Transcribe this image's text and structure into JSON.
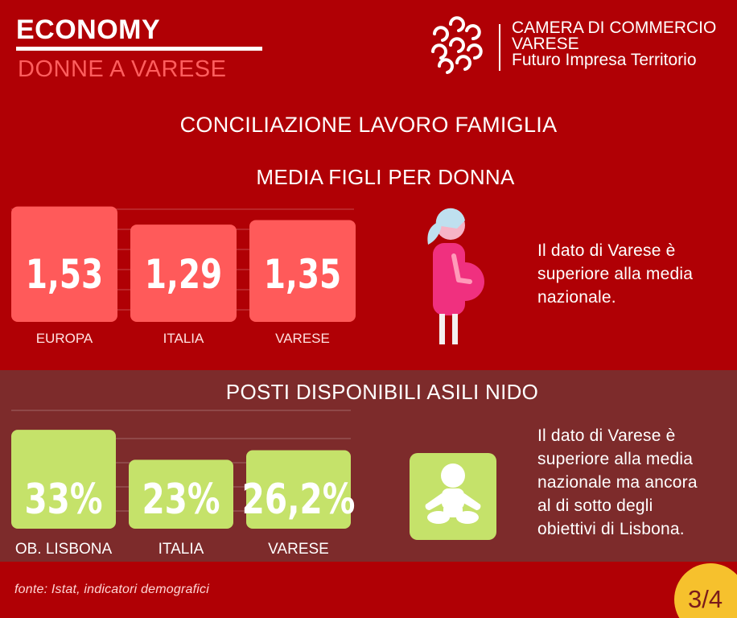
{
  "header": {
    "title": "ECONOMY",
    "subtitle": "DONNE A VARESE",
    "logo_lines": [
      "CAMERA DI COMMERCIO",
      "VARESE",
      "Futuro Impresa Territorio"
    ]
  },
  "main_title": "CONCILIAZIONE LAVORO FAMIGLIA",
  "colors": {
    "background": "#b00005",
    "section2_background": "#7d2b2b",
    "bar1": "#ff5a5a",
    "bar2": "#c5e26a",
    "icon_pink": "#f0307f",
    "badge": "#f6c12d"
  },
  "chart_data": [
    {
      "type": "bar",
      "title": "MEDIA FIGLI PER DONNA",
      "categories": [
        "EUROPA",
        "ITALIA",
        "VARESE"
      ],
      "values": [
        1.53,
        1.29,
        1.35
      ],
      "value_labels": [
        "1,53",
        "1,29",
        "1,35"
      ],
      "ylim": [
        0,
        1.6
      ],
      "grid": true
    },
    {
      "type": "bar",
      "title": "POSTI DISPONIBILI ASILI NIDO",
      "categories": [
        "OB. LISBONA",
        "ITALIA",
        "VARESE"
      ],
      "values": [
        33,
        23,
        26.2
      ],
      "value_labels": [
        "33%",
        "23%",
        "26,2%"
      ],
      "ylim": [
        0,
        36
      ],
      "grid": true
    }
  ],
  "notes": {
    "note1": [
      "Il dato di Varese è",
      "superiore alla media",
      "nazionale."
    ],
    "note2": [
      "Il dato di Varese è",
      "superiore alla media",
      "nazionale ma ancora",
      "al di sotto degli",
      "obiettivi di Lisbona."
    ]
  },
  "icons": {
    "woman": "pregnant-woman-icon",
    "baby": "baby-icon",
    "logo": "chamber-logo-icon"
  },
  "source": "fonte:  Istat, indicatori demografici",
  "page": "3/4"
}
